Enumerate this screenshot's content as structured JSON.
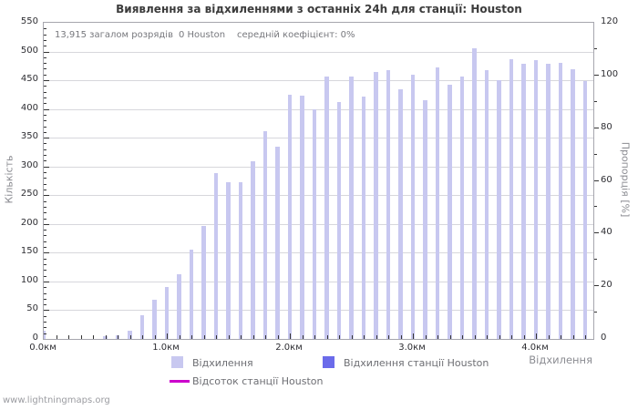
{
  "title": "Виявлення за відхиленнями з останніх 24h для станції: Houston",
  "stats": {
    "total": "13,915 загалом розрядів",
    "station": "0 Houston",
    "avg": "середній коефіцієнт: 0%"
  },
  "axes": {
    "left_label": "Кількість",
    "right_label": "Пропорція [%]",
    "x_label": "Відхилення",
    "x_unit": "км"
  },
  "legend": {
    "items": [
      {
        "label": "Відхилення",
        "color": "#c8c8f0",
        "type": "square"
      },
      {
        "label": "Відхилення станції Houston",
        "color": "#6b6bea",
        "type": "square"
      },
      {
        "label": "Відсоток станції Houston",
        "color": "#cc00cc",
        "type": "line"
      }
    ]
  },
  "watermark": "www.lightningmaps.org",
  "colors": {
    "bar": "#c8c8f0",
    "station_bar": "#6b6bea",
    "percent_line": "#cc00cc",
    "grid": "#d7d7dc",
    "axis_frame": "#a6a6ae",
    "tick": "#333333"
  },
  "chart_data": {
    "type": "bar",
    "title": "Виявлення за відхиленнями з останніх 24h для станції: Houston",
    "xlabel": "Відхилення",
    "ylabel_left": "Кількість",
    "ylabel_right": "Пропорція [%]",
    "x_unit": "км",
    "categories": [
      "0.0",
      "0.1",
      "0.2",
      "0.3",
      "0.4",
      "0.5",
      "0.6",
      "0.7",
      "0.8",
      "0.9",
      "1.0",
      "1.1",
      "1.2",
      "1.3",
      "1.4",
      "1.5",
      "1.6",
      "1.7",
      "1.8",
      "1.9",
      "2.0",
      "2.1",
      "2.2",
      "2.3",
      "2.4",
      "2.5",
      "2.6",
      "2.7",
      "2.8",
      "2.9",
      "3.0",
      "3.1",
      "3.2",
      "3.3",
      "3.4",
      "3.5",
      "3.6",
      "3.7",
      "3.8",
      "3.9",
      "4.0",
      "4.1",
      "4.2",
      "4.3",
      "4.4"
    ],
    "series": [
      {
        "name": "Відхилення",
        "axis": "left",
        "values": [
          15,
          0,
          0,
          0,
          0,
          4,
          7,
          14,
          42,
          68,
          91,
          113,
          156,
          196,
          289,
          273,
          272,
          309,
          362,
          334,
          425,
          423,
          400,
          456,
          412,
          456,
          421,
          464,
          468,
          435,
          460,
          415,
          472,
          442,
          457,
          505,
          467,
          450,
          486,
          479,
          485,
          479,
          480,
          469,
          449
        ]
      },
      {
        "name": "Відхилення станції Houston",
        "axis": "left",
        "values": [
          0,
          0,
          0,
          0,
          0,
          0,
          0,
          0,
          0,
          0,
          0,
          0,
          0,
          0,
          0,
          0,
          0,
          0,
          0,
          0,
          0,
          0,
          0,
          0,
          0,
          0,
          0,
          0,
          0,
          0,
          0,
          0,
          0,
          0,
          0,
          0,
          0,
          0,
          0,
          0,
          0,
          0,
          0,
          0,
          0
        ]
      },
      {
        "name": "Відсоток станції Houston",
        "axis": "right",
        "values": [
          0,
          0,
          0,
          0,
          0,
          0,
          0,
          0,
          0,
          0,
          0,
          0,
          0,
          0,
          0,
          0,
          0,
          0,
          0,
          0,
          0,
          0,
          0,
          0,
          0,
          0,
          0,
          0,
          0,
          0,
          0,
          0,
          0,
          0,
          0,
          0,
          0,
          0,
          0,
          0,
          0,
          0,
          0,
          0,
          0
        ]
      }
    ],
    "ylim_left": [
      0,
      550
    ],
    "ytick_left_major": 50,
    "ytick_left_minor": 10,
    "ylim_right": [
      0,
      120
    ],
    "ytick_right_major": 20,
    "ytick_right_minor": 10,
    "xlim_km": [
      0.0,
      4.47
    ],
    "xtick_major_km": 1.0,
    "xtick_minor_km": 0.1,
    "grid": "horizontal",
    "legend_position": "bottom"
  }
}
